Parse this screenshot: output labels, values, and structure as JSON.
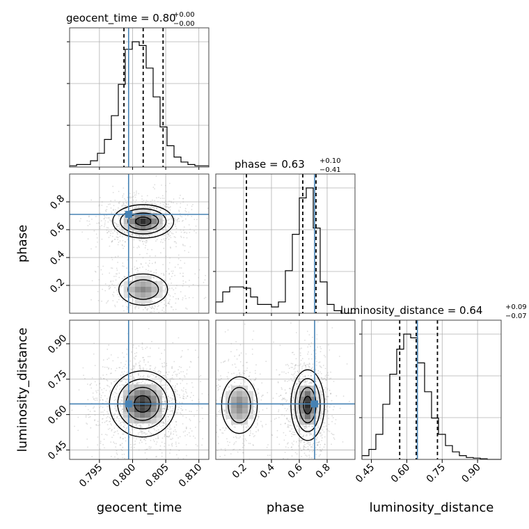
{
  "chart_data": {
    "type": "corner",
    "parameters": [
      "geocent_time",
      "phase",
      "luminosity_distance"
    ],
    "titles": [
      {
        "param": "geocent_time",
        "text": "geocent_time = 0.80",
        "sup": "+0.00",
        "sub": "−0.00"
      },
      {
        "param": "phase",
        "text": "phase = 0.63",
        "sup": "+0.10",
        "sub": "−0.41"
      },
      {
        "param": "luminosity_distance",
        "text": "luminosity_distance = 0.64",
        "sup": "+0.09",
        "sub": "−0.07"
      }
    ],
    "axes": {
      "geocent_time": {
        "range": [
          0.7905,
          0.8115
        ],
        "ticks": [
          0.795,
          0.8,
          0.805,
          0.81
        ],
        "tick_labels": [
          "0.795",
          "0.800",
          "0.805",
          "0.810"
        ]
      },
      "phase": {
        "range": [
          0.0,
          1.0
        ],
        "ticks": [
          0.2,
          0.4,
          0.6,
          0.8
        ],
        "tick_labels": [
          "0.2",
          "0.4",
          "0.6",
          "0.8"
        ]
      },
      "luminosity_distance": {
        "range": [
          0.41,
          1.0
        ],
        "ticks": [
          0.45,
          0.6,
          0.75,
          0.9
        ],
        "tick_labels": [
          "0.45",
          "0.60",
          "0.75",
          "0.90"
        ]
      }
    },
    "truths": {
      "geocent_time": 0.7994,
      "phase": 0.71,
      "luminosity_distance": 0.645
    },
    "quantiles": {
      "geocent_time": [
        0.7987,
        0.8016,
        0.8046
      ],
      "phase": [
        0.22,
        0.625,
        0.72
      ],
      "luminosity_distance": [
        0.57,
        0.64,
        0.73
      ]
    },
    "histograms": {
      "geocent_time": [
        0.01,
        0.02,
        0.02,
        0.05,
        0.11,
        0.22,
        0.41,
        0.66,
        0.94,
        1.0,
        0.97,
        0.79,
        0.56,
        0.32,
        0.17,
        0.08,
        0.04,
        0.02,
        0.01,
        0.01
      ],
      "phase": [
        0.09,
        0.17,
        0.21,
        0.21,
        0.2,
        0.13,
        0.07,
        0.07,
        0.05,
        0.09,
        0.34,
        0.63,
        0.92,
        1.0,
        0.68,
        0.25,
        0.07,
        0.02,
        0.0,
        0.0
      ],
      "luminosity_distance": [
        0.03,
        0.08,
        0.2,
        0.44,
        0.68,
        0.88,
        1.0,
        0.97,
        0.77,
        0.54,
        0.33,
        0.2,
        0.11,
        0.06,
        0.03,
        0.015,
        0.01,
        0.005,
        0.0,
        0.0
      ]
    },
    "grid": true,
    "colors": {
      "truth": "#4682b4",
      "hist": "#000000",
      "contour": "#000000",
      "points": "#9e9e9e"
    }
  }
}
